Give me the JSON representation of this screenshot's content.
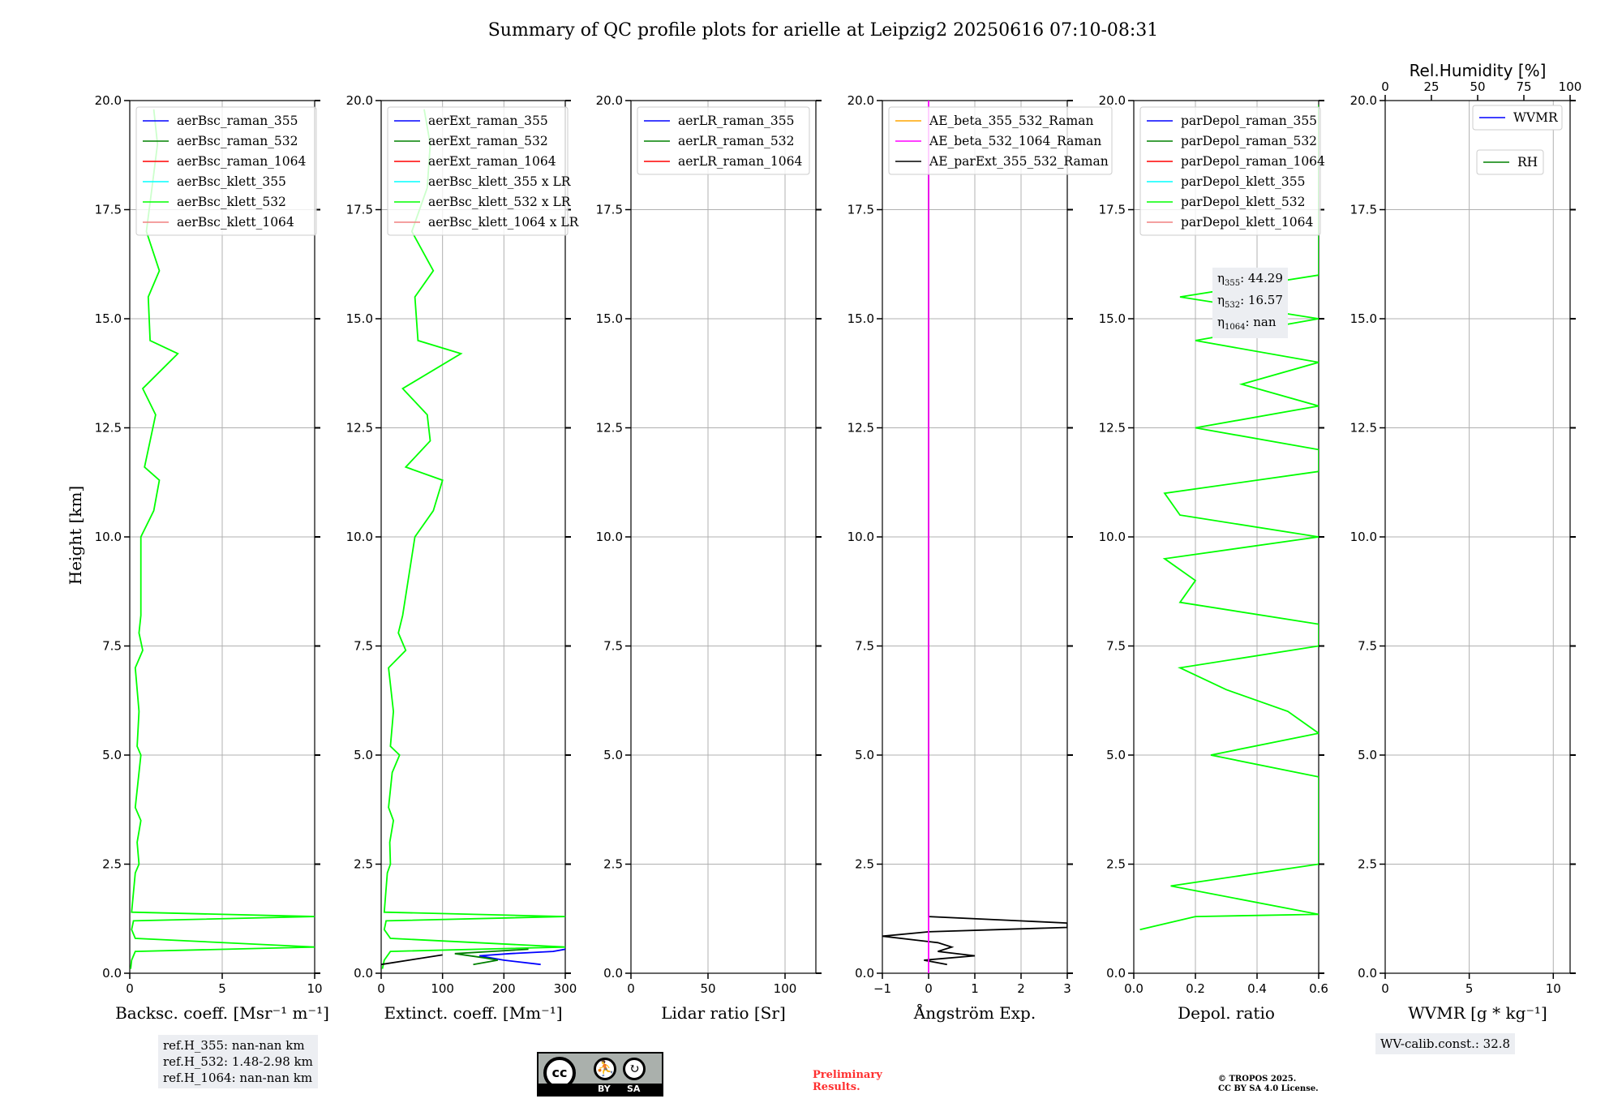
{
  "title": "Summary of QC profile plots for arielle at Leipzig2 20250616 07:10-08:31",
  "ylabel": "Height [km]",
  "yticks": [
    "0.0",
    "2.5",
    "5.0",
    "7.5",
    "10.0",
    "12.5",
    "15.0",
    "17.5",
    "20.0"
  ],
  "colors": {
    "raman_355": "#0000ff",
    "raman_532": "#008000",
    "raman_1064": "#ff0000",
    "klett_355": "#00ffff",
    "klett_532": "#00ff00",
    "klett_1064": "#f08080",
    "orange": "#ffa500",
    "magenta": "#ff00ff",
    "black": "#000000",
    "green": "#008000"
  },
  "chart_data": [
    {
      "type": "line",
      "id": "bsc",
      "xlabel": "Backsc. coeff. [Msr⁻¹ m⁻¹]",
      "xlim": [
        0,
        10
      ],
      "ylim": [
        0,
        20
      ],
      "xticks": [
        "0",
        "5",
        "10"
      ],
      "legend": [
        "aerBsc_raman_355",
        "aerBsc_raman_532",
        "aerBsc_raman_1064",
        "aerBsc_klett_355",
        "aerBsc_klett_532",
        "aerBsc_klett_1064"
      ],
      "series": [
        {
          "name": "aerBsc_klett_532",
          "y": [
            0.1,
            0.3,
            0.5,
            0.6,
            0.8,
            1.0,
            1.2,
            1.3,
            1.4,
            2.3,
            2.5,
            3.0,
            3.5,
            3.8,
            4.6,
            5.0,
            5.2,
            6.0,
            7.0,
            7.4,
            7.8,
            8.2,
            10.0,
            10.6,
            11.3,
            11.6,
            12.2,
            12.8,
            13.4,
            14.2,
            14.5,
            15.5,
            16.1,
            17.0,
            18.0,
            19.0,
            19.8
          ],
          "x": [
            0.05,
            0.1,
            0.3,
            10.0,
            0.3,
            0.1,
            0.2,
            10.0,
            0.1,
            0.3,
            0.5,
            0.4,
            0.6,
            0.3,
            0.5,
            0.6,
            0.4,
            0.5,
            0.3,
            0.7,
            0.5,
            0.6,
            0.6,
            1.3,
            1.6,
            0.8,
            1.1,
            1.4,
            0.7,
            2.6,
            1.1,
            1.0,
            1.6,
            0.9,
            1.2,
            1.5,
            1.3
          ]
        }
      ]
    },
    {
      "type": "line",
      "id": "ext",
      "xlabel": "Extinct. coeff. [Mm⁻¹]",
      "xlim": [
        0,
        300
      ],
      "ylim": [
        0,
        20
      ],
      "xticks": [
        "0",
        "100",
        "200",
        "300"
      ],
      "legend": [
        "aerExt_raman_355",
        "aerExt_raman_532",
        "aerExt_raman_1064",
        "aerBsc_klett_355 x LR",
        "aerBsc_klett_532 x LR",
        "aerBsc_klett_1064 x LR"
      ],
      "series": [
        {
          "name": "aerBsc_klett_532 x LR",
          "y": [
            0.1,
            0.3,
            0.5,
            0.6,
            0.8,
            1.0,
            1.2,
            1.3,
            1.4,
            2.3,
            2.5,
            3.0,
            3.5,
            3.8,
            4.6,
            5.0,
            5.2,
            6.0,
            7.0,
            7.4,
            7.8,
            8.2,
            10.0,
            10.6,
            11.3,
            11.6,
            12.2,
            12.8,
            13.4,
            14.2,
            14.5,
            15.5,
            16.1,
            17.0,
            18.0,
            19.0,
            19.8
          ],
          "x": [
            2,
            5,
            15,
            300,
            15,
            5,
            8,
            300,
            5,
            10,
            15,
            14,
            20,
            12,
            18,
            30,
            15,
            20,
            12,
            40,
            28,
            35,
            55,
            85,
            100,
            40,
            80,
            75,
            35,
            130,
            60,
            55,
            85,
            50,
            75,
            80,
            70
          ]
        },
        {
          "name": "aerExt_raman_355",
          "y": [
            0.2,
            0.3,
            0.4,
            0.45,
            0.5,
            0.55
          ],
          "x": [
            260,
            200,
            160,
            210,
            280,
            300
          ]
        },
        {
          "name": "aerExt_raman_532",
          "y": [
            0.2,
            0.3,
            0.35,
            0.45,
            0.5,
            0.55
          ],
          "x": [
            150,
            190,
            170,
            120,
            180,
            240
          ]
        },
        {
          "name": "black",
          "y": [
            0.2,
            0.42
          ],
          "x": [
            0,
            100
          ]
        }
      ]
    },
    {
      "type": "line",
      "id": "lr",
      "xlabel": "Lidar ratio [Sr]",
      "xlim": [
        0,
        120
      ],
      "ylim": [
        0,
        20
      ],
      "xticks": [
        "0",
        "50",
        "100"
      ],
      "legend": [
        "aerLR_raman_355",
        "aerLR_raman_532",
        "aerLR_raman_1064"
      ],
      "series": []
    },
    {
      "type": "line",
      "id": "ae",
      "xlabel": "Ångström Exp.",
      "xlim": [
        -1,
        3
      ],
      "ylim": [
        0,
        20
      ],
      "xticks": [
        "−1",
        "0",
        "1",
        "2",
        "3"
      ],
      "legend": [
        "AE_beta_355_532_Raman",
        "AE_beta_532_1064_Raman",
        "AE_parExt_355_532_Raman"
      ],
      "series": [
        {
          "name": "AE_parExt_355_532_Raman",
          "y": [
            0.2,
            0.3,
            0.4,
            0.5,
            0.6,
            0.7,
            0.85,
            0.95,
            1.05,
            1.15,
            1.3,
            18.5
          ],
          "x": [
            0.4,
            -0.1,
            1.0,
            0.2,
            0.5,
            0.2,
            -1.0,
            0.0,
            3.0,
            3.0,
            0.0,
            0.0
          ]
        },
        {
          "name": "AE_beta_532_1064_Raman",
          "y": [
            0.0,
            20.0
          ],
          "x": [
            0.0,
            0.0
          ]
        }
      ]
    },
    {
      "type": "line",
      "id": "depol",
      "xlabel": "Depol. ratio",
      "xlim": [
        0,
        0.6
      ],
      "ylim": [
        0,
        20
      ],
      "xticks": [
        "0.0",
        "0.2",
        "0.4",
        "0.6"
      ],
      "legend": [
        "parDepol_raman_355",
        "parDepol_raman_532",
        "parDepol_raman_1064",
        "parDepol_klett_355",
        "parDepol_klett_532",
        "parDepol_klett_1064"
      ],
      "series": [
        {
          "name": "parDepol_klett_532",
          "y": [
            1.0,
            1.3,
            1.35,
            2.0,
            2.5,
            3.0,
            3.5,
            4.0,
            4.5,
            5.0,
            5.5,
            6.0,
            6.5,
            7.0,
            7.5,
            8.0,
            8.5,
            9.0,
            9.5,
            10.0,
            10.5,
            11.0,
            11.5,
            12.0,
            12.5,
            13.0,
            13.5,
            14.0,
            14.5,
            15.0,
            15.5,
            16.0,
            16.5,
            17.0,
            17.5,
            18.0,
            18.5,
            19.0,
            19.5,
            19.9
          ],
          "x": [
            0.02,
            0.2,
            0.6,
            0.12,
            0.6,
            0.6,
            0.6,
            0.6,
            0.6,
            0.25,
            0.6,
            0.5,
            0.3,
            0.15,
            0.6,
            0.6,
            0.15,
            0.2,
            0.1,
            0.6,
            0.15,
            0.1,
            0.6,
            0.6,
            0.2,
            0.6,
            0.35,
            0.6,
            0.2,
            0.6,
            0.15,
            0.6,
            0.6,
            0.6,
            0.6,
            0.6,
            0.6,
            0.6,
            0.6,
            0.6
          ]
        }
      ]
    },
    {
      "type": "line",
      "id": "wv",
      "xlabel": "WVMR [g * kg⁻¹]",
      "xlim": [
        0,
        11
      ],
      "ylim": [
        0,
        20
      ],
      "xticks": [
        "0",
        "5",
        "10"
      ],
      "top_xlabel": "Rel.Humidity [%]",
      "top_xlim": [
        0,
        100
      ],
      "top_xticks": [
        "0",
        "25",
        "50",
        "75",
        "100"
      ],
      "legend": [
        "WVMR",
        "RH"
      ],
      "series": []
    }
  ],
  "annotations": {
    "eta": [
      "η355: 44.29",
      "η532: 16.57",
      "η1064: nan"
    ],
    "eta_lines": [
      {
        "sym": "η",
        "sub": "355",
        "val": ": 44.29"
      },
      {
        "sym": "η",
        "sub": "532",
        "val": ": 16.57"
      },
      {
        "sym": "η",
        "sub": "1064",
        "val": ": nan"
      }
    ],
    "refH": [
      "ref.H_355: nan-nan km",
      "ref.H_532: 1.48-2.98 km",
      "ref.H_1064: nan-nan km"
    ],
    "wv_calib": "WV-calib.const.: 32.8",
    "preliminary": [
      "Preliminary",
      "Results."
    ],
    "copyright": [
      "© TROPOS 2025.",
      "CC BY SA 4.0 License."
    ],
    "cc_badge": {
      "top": "cc",
      "by": "BY",
      "sa": "SA"
    }
  }
}
